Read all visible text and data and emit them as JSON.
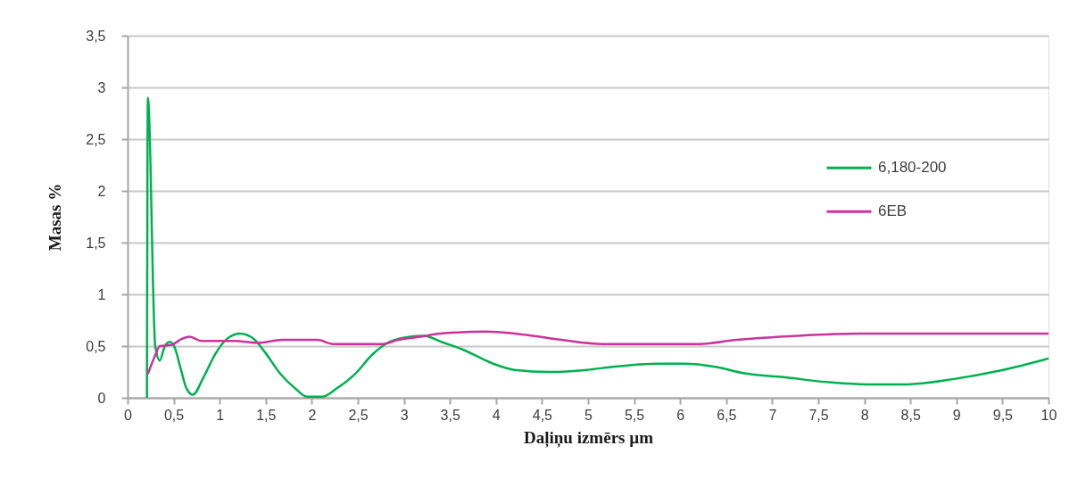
{
  "chart_data": {
    "type": "line",
    "xlabel": "Daļiņu izmērs µm",
    "ylabel": "Masas %",
    "series": [
      {
        "name": "6,180-200",
        "color": "#00b050",
        "x": [
          0.21,
          0.22,
          0.3,
          0.35,
          0.4,
          0.46,
          0.51,
          0.58,
          0.64,
          0.71,
          0.82,
          0.95,
          1.08,
          1.22,
          1.37,
          1.5,
          1.66,
          1.82,
          1.95,
          2.11,
          2.27,
          2.47,
          2.66,
          2.82,
          2.99,
          3.21,
          3.44,
          3.63,
          3.97,
          4.2,
          4.58,
          4.99,
          5.27,
          5.78,
          6.04,
          6.38,
          6.68,
          7.12,
          7.62,
          8.02,
          8.45,
          8.96,
          9.46,
          10
        ],
        "values": [
          0,
          2.9,
          0.5,
          0.36,
          0.49,
          0.54,
          0.49,
          0.27,
          0.09,
          0.03,
          0.19,
          0.42,
          0.57,
          0.62,
          0.57,
          0.43,
          0.23,
          0.09,
          0.01,
          0.01,
          0.09,
          0.23,
          0.42,
          0.53,
          0.58,
          0.6,
          0.53,
          0.47,
          0.33,
          0.27,
          0.25,
          0.27,
          0.3,
          0.33,
          0.33,
          0.3,
          0.24,
          0.2,
          0.15,
          0.13,
          0.13,
          0.18,
          0.26,
          0.38
        ]
      },
      {
        "name": "6EB",
        "color": "#cc3399",
        "x": [
          0.22,
          0.29,
          0.35,
          0.47,
          0.59,
          0.67,
          0.8,
          1.17,
          1.41,
          1.68,
          2.06,
          2.23,
          2.54,
          2.77,
          2.94,
          3.18,
          3.39,
          3.9,
          4.31,
          4.71,
          5.16,
          5.61,
          6.21,
          6.61,
          7.28,
          7.95,
          8.62,
          10
        ],
        "values": [
          0.23,
          0.39,
          0.5,
          0.51,
          0.57,
          0.59,
          0.55,
          0.55,
          0.53,
          0.56,
          0.56,
          0.52,
          0.52,
          0.52,
          0.56,
          0.59,
          0.62,
          0.64,
          0.61,
          0.56,
          0.52,
          0.52,
          0.52,
          0.56,
          0.6,
          0.62,
          0.62,
          0.62
        ]
      }
    ],
    "xlim": [
      0,
      10
    ],
    "xticks": [
      0,
      {
        "value": 0.5,
        "label": "0,5"
      },
      1,
      {
        "value": 1.5,
        "label": "1,5"
      },
      2,
      {
        "value": 2.5,
        "label": "2,5"
      },
      3,
      {
        "value": 3.5,
        "label": "3,5"
      },
      4,
      {
        "value": 4.5,
        "label": "4,5"
      },
      5,
      {
        "value": 5.5,
        "label": "5,5"
      },
      6,
      {
        "value": 6.5,
        "label": "6,5"
      },
      7,
      {
        "value": 7.5,
        "label": "7,5"
      },
      8,
      {
        "value": 8.5,
        "label": "8,5"
      },
      9,
      {
        "value": 9.5,
        "label": "9,5"
      },
      10
    ],
    "ylim": [
      0,
      3.5
    ],
    "yticks": [
      0,
      {
        "value": 0.5,
        "label": "0,5"
      },
      1,
      {
        "value": 1.5,
        "label": "1,5"
      },
      2,
      {
        "value": 2.5,
        "label": "2,5"
      },
      3,
      {
        "value": 3.5,
        "label": "3,5"
      }
    ],
    "grid": "y",
    "legend": "right",
    "line_style": "solid"
  }
}
